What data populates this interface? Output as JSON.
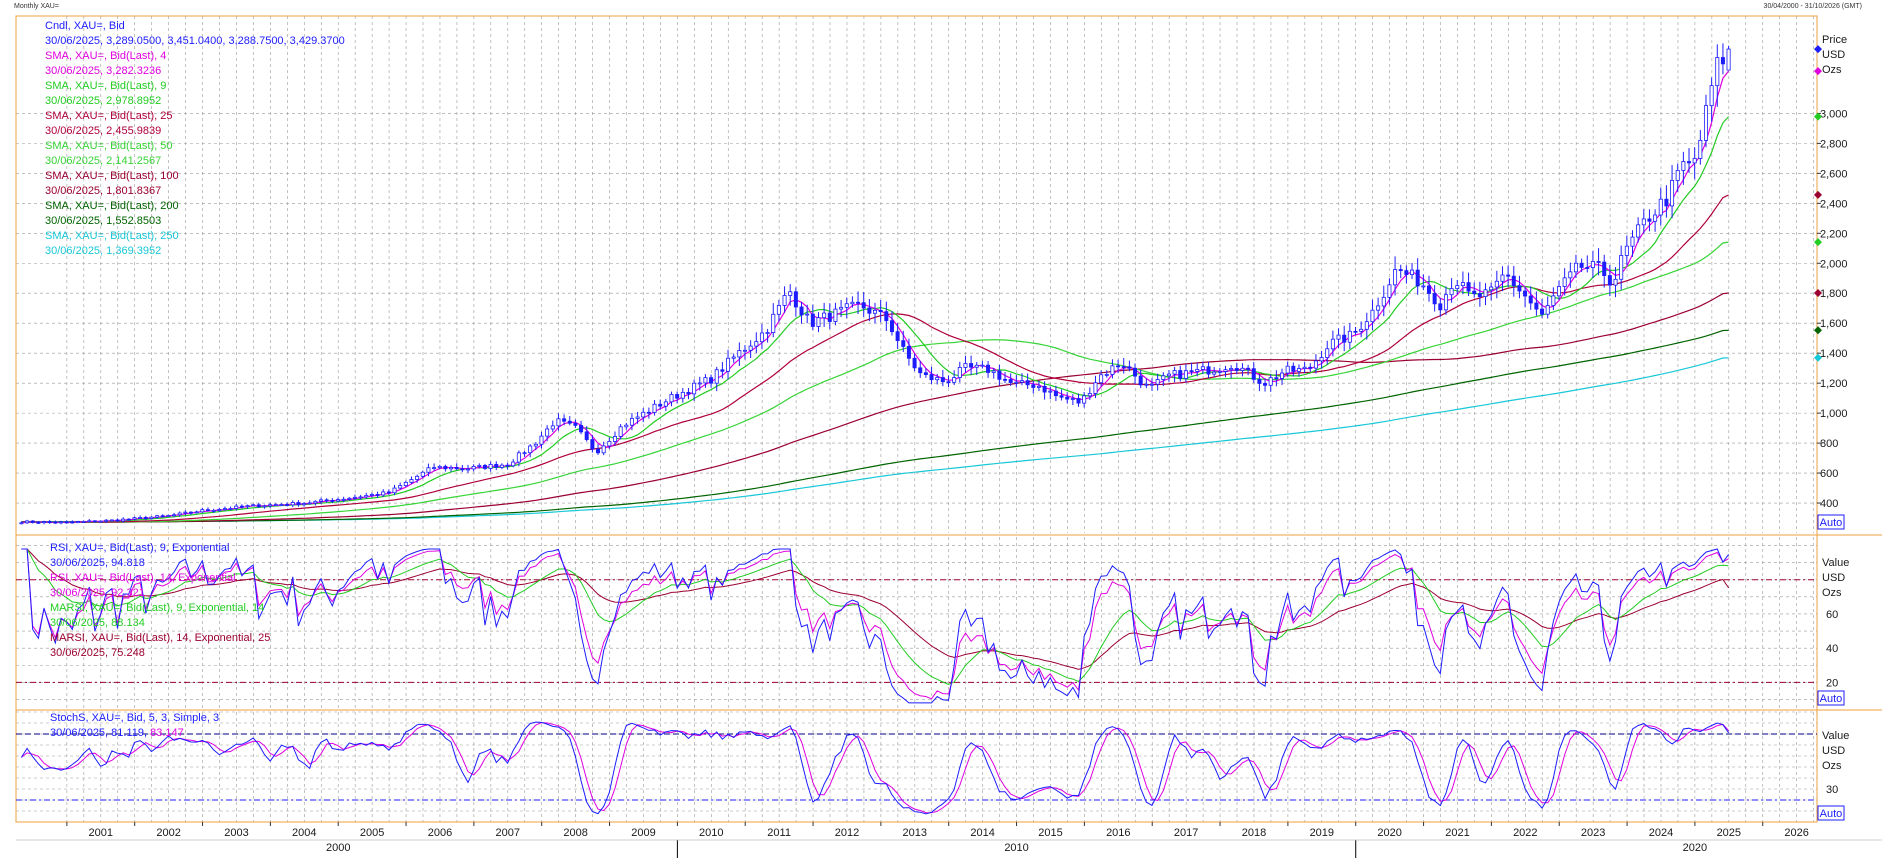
{
  "window": {
    "title": "Monthly XAU=",
    "range_label": "30/04/2000 - 31/10/2026 (GMT)"
  },
  "colors": {
    "candle": "#1c1cff",
    "sma4": "#e000e0",
    "sma9": "#22cc22",
    "sma25": "#b0003a",
    "sma50": "#36d436",
    "sma100": "#9b0030",
    "sma200": "#006400",
    "sma250": "#18c8d8",
    "rsi9": "#1c1cff",
    "rsi14": "#e000e0",
    "marsi9": "#22cc22",
    "marsi14": "#9b0030",
    "stochK": "#1c1cff",
    "stochD": "#e000e0",
    "grid": "#9a9a9a",
    "separator": "#f0a040"
  },
  "legends": {
    "price": [
      {
        "text": "Cndl, XAU=, Bid",
        "color": "#1c1cff"
      },
      {
        "text": "30/06/2025, 3,289.0500, 3,451.0400, 3,288.7500, 3,429.3700",
        "color": "#1c1cff"
      },
      {
        "text": "SMA, XAU=, Bid(Last),  4",
        "color": "#e000e0"
      },
      {
        "text": "30/06/2025, 3,282.3236",
        "color": "#e000e0"
      },
      {
        "text": "SMA, XAU=, Bid(Last),  9",
        "color": "#22cc22"
      },
      {
        "text": "30/06/2025, 2,978.8952",
        "color": "#22cc22"
      },
      {
        "text": "SMA, XAU=, Bid(Last),  25",
        "color": "#b0003a"
      },
      {
        "text": "30/06/2025, 2,455.9839",
        "color": "#b0003a"
      },
      {
        "text": "SMA, XAU=, Bid(Last),  50",
        "color": "#36d436"
      },
      {
        "text": "30/06/2025, 2,141.2567",
        "color": "#36d436"
      },
      {
        "text": "SMA, XAU=, Bid(Last),  100",
        "color": "#9b0030"
      },
      {
        "text": "30/06/2025, 1,801.8367",
        "color": "#9b0030"
      },
      {
        "text": "SMA, XAU=, Bid(Last),  200",
        "color": "#006400"
      },
      {
        "text": "30/06/2025, 1,552.8503",
        "color": "#006400"
      },
      {
        "text": "SMA, XAU=, Bid(Last),  250",
        "color": "#18c8d8"
      },
      {
        "text": "30/06/2025, 1,369.3952",
        "color": "#18c8d8"
      }
    ],
    "rsi": [
      {
        "text": "RSI, XAU=, Bid(Last),  9, Exponential",
        "color": "#1c1cff"
      },
      {
        "text": "30/06/2025, 94.818",
        "color": "#1c1cff"
      },
      {
        "text": "RSI, XAU=, Bid(Last),  14, Exponential",
        "color": "#e000e0"
      },
      {
        "text": "30/06/2025, 92.321",
        "color": "#e000e0"
      },
      {
        "text": "MARSI, XAU=, Bid(Last),  9, Exponential, 14",
        "color": "#22cc22"
      },
      {
        "text": "30/06/2025, 88.134",
        "color": "#22cc22"
      },
      {
        "text": "MARSI, XAU=, Bid(Last),  14, Exponential, 25",
        "color": "#9b0030"
      },
      {
        "text": "30/06/2025, 75.248",
        "color": "#9b0030"
      }
    ],
    "stoch": [
      {
        "text": "StochS, XAU=, Bid,  5, 3, Simple, 3",
        "color": "#1c1cff"
      }
    ],
    "stoch_values": {
      "k": "30/06/2025, 81.119,",
      "d": "83.147"
    }
  },
  "axis_labels": {
    "price": [
      "Price",
      "USD",
      "Ozs"
    ],
    "rsi": [
      "Value",
      "USD",
      "Ozs"
    ],
    "stoch": [
      "Value",
      "USD",
      "Ozs"
    ],
    "auto": "Auto"
  },
  "chart_data": [
    {
      "type": "candlestick",
      "title": "Cndl, XAU=, Bid",
      "y_ticks": [
        "400",
        "600",
        "800",
        "1,000",
        "1,200",
        "1,400",
        "1,600",
        "1,800",
        "2,000",
        "2,200",
        "2,400",
        "2,600",
        "2,800",
        "3,000"
      ],
      "ylim": [
        200,
        3650
      ],
      "x_ticks": [
        "2001",
        "2002",
        "2003",
        "2004",
        "2005",
        "2006",
        "2007",
        "2008",
        "2009",
        "2010",
        "2011",
        "2012",
        "2013",
        "2014",
        "2015",
        "2016",
        "2017",
        "2018",
        "2019",
        "2020",
        "2021",
        "2022",
        "2023",
        "2024",
        "2025",
        "2026"
      ],
      "x_decades": [
        "2000",
        "2010",
        "2020"
      ],
      "xlim": [
        2000.25,
        2026.8
      ],
      "anchors": [
        [
          2000.33,
          275
        ],
        [
          2001.0,
          270
        ],
        [
          2001.7,
          285
        ],
        [
          2002.5,
          315
        ],
        [
          2003.0,
          350
        ],
        [
          2003.7,
          380
        ],
        [
          2004.5,
          400
        ],
        [
          2005.0,
          425
        ],
        [
          2005.75,
          470
        ],
        [
          2006.4,
          640
        ],
        [
          2006.9,
          630
        ],
        [
          2007.5,
          660
        ],
        [
          2007.9,
          800
        ],
        [
          2008.2,
          950
        ],
        [
          2008.5,
          900
        ],
        [
          2008.8,
          740
        ],
        [
          2009.2,
          920
        ],
        [
          2009.9,
          1100
        ],
        [
          2010.5,
          1230
        ],
        [
          2010.9,
          1400
        ],
        [
          2011.3,
          1550
        ],
        [
          2011.65,
          1820
        ],
        [
          2011.95,
          1600
        ],
        [
          2012.25,
          1650
        ],
        [
          2012.7,
          1720
        ],
        [
          2013.1,
          1620
        ],
        [
          2013.35,
          1400
        ],
        [
          2013.6,
          1250
        ],
        [
          2013.95,
          1210
        ],
        [
          2014.25,
          1300
        ],
        [
          2014.6,
          1290
        ],
        [
          2014.95,
          1190
        ],
        [
          2015.3,
          1190
        ],
        [
          2015.6,
          1110
        ],
        [
          2015.95,
          1070
        ],
        [
          2016.2,
          1240
        ],
        [
          2016.55,
          1340
        ],
        [
          2016.95,
          1160
        ],
        [
          2017.25,
          1250
        ],
        [
          2017.7,
          1280
        ],
        [
          2017.95,
          1300
        ],
        [
          2018.2,
          1330
        ],
        [
          2018.65,
          1200
        ],
        [
          2018.95,
          1280
        ],
        [
          2019.3,
          1290
        ],
        [
          2019.6,
          1460
        ],
        [
          2019.95,
          1520
        ],
        [
          2020.25,
          1680
        ],
        [
          2020.6,
          1960
        ],
        [
          2020.95,
          1880
        ],
        [
          2021.25,
          1730
        ],
        [
          2021.45,
          1900
        ],
        [
          2021.7,
          1770
        ],
        [
          2022.0,
          1800
        ],
        [
          2022.2,
          1930
        ],
        [
          2022.5,
          1780
        ],
        [
          2022.75,
          1640
        ],
        [
          2022.95,
          1800
        ],
        [
          2023.3,
          1980
        ],
        [
          2023.6,
          1960
        ],
        [
          2023.8,
          1870
        ],
        [
          2023.95,
          2060
        ],
        [
          2024.3,
          2300
        ],
        [
          2024.6,
          2440
        ],
        [
          2024.85,
          2680
        ],
        [
          2024.95,
          2620
        ],
        [
          2025.1,
          2860
        ],
        [
          2025.3,
          3290
        ],
        [
          2025.5,
          3430
        ]
      ],
      "sma_last": {
        "sma4": 3282.3236,
        "sma9": 2978.8952,
        "sma25": 2455.9839,
        "sma50": 2141.2567,
        "sma100": 1801.8367,
        "sma200": 1552.8503,
        "sma250": 1369.3952
      },
      "last_candle": {
        "date": "30/06/2025",
        "open": 3289.05,
        "high": 3451.04,
        "low": 3288.75,
        "close": 3429.37
      }
    },
    {
      "type": "line",
      "title": "RSI",
      "y_ticks": [
        "20",
        "40",
        "60"
      ],
      "ylim": [
        5,
        105
      ],
      "ref_lines": [
        80,
        20
      ],
      "last": {
        "rsi9": 94.818,
        "rsi14": 92.321,
        "marsi9": 88.134,
        "marsi14": 75.248
      }
    },
    {
      "type": "line",
      "title": "StochS, XAU=, Bid,  5, 3, Simple, 3",
      "y_ticks": [
        "30"
      ],
      "ylim": [
        0,
        100
      ],
      "ref_lines": [
        80,
        20
      ],
      "last": {
        "k": 81.119,
        "d": 83.147
      }
    }
  ]
}
